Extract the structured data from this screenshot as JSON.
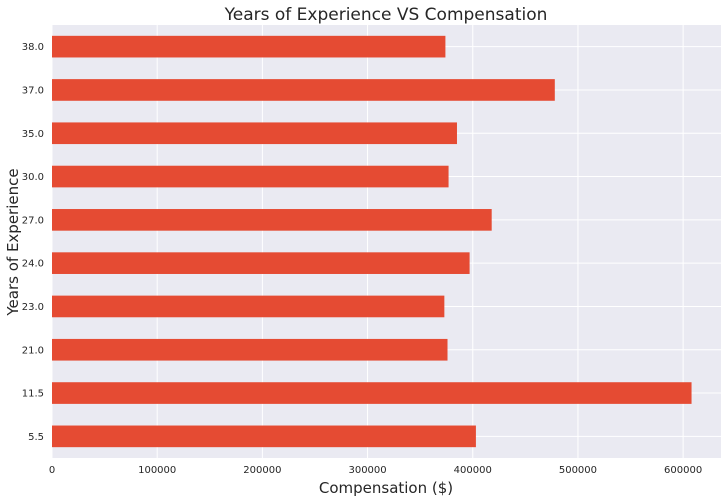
{
  "chart_data": {
    "type": "bar",
    "orientation": "horizontal",
    "title": "Years of Experience VS Compensation",
    "xlabel": "Compensation ($)",
    "ylabel": "Years of Experience",
    "categories": [
      "38.0",
      "37.0",
      "35.0",
      "30.0",
      "27.0",
      "24.0",
      "23.0",
      "21.0",
      "11.5",
      "5.5"
    ],
    "values": [
      374000,
      478000,
      385000,
      377000,
      418000,
      397000,
      373000,
      376000,
      608000,
      403000
    ],
    "xlim": [
      0,
      636000
    ],
    "xticks": [
      0,
      100000,
      200000,
      300000,
      400000,
      500000,
      600000
    ],
    "xtick_labels": [
      "0",
      "100000",
      "200000",
      "300000",
      "400000",
      "500000",
      "600000"
    ],
    "grid": true,
    "legend": false,
    "colors": {
      "bar": "#E54B33",
      "plot_background": "#EAEAF2",
      "grid": "#FFFFFF"
    }
  }
}
